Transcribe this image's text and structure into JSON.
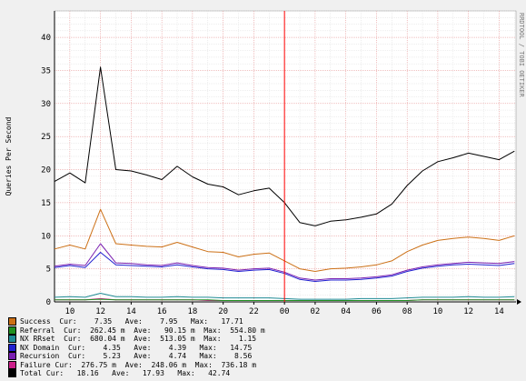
{
  "chart_data": {
    "type": "line",
    "ylabel": "Queries Per Second",
    "watermark": "RRDTOOL / TOBI OETIKER",
    "ylim": [
      0,
      44
    ],
    "yticks": [
      0,
      5,
      10,
      15,
      20,
      25,
      30,
      35,
      40
    ],
    "x_tick_labels": [
      "10",
      "12",
      "14",
      "16",
      "18",
      "20",
      "22",
      "00",
      "02",
      "04",
      "06",
      "08",
      "10",
      "12",
      "14"
    ],
    "x_hours_span": [
      9.0,
      39.1
    ],
    "x_tick_hours": [
      10,
      12,
      14,
      16,
      18,
      20,
      22,
      24,
      26,
      28,
      30,
      32,
      34,
      36,
      38
    ],
    "vrule_hour": 24,
    "hour_step": 1,
    "series": [
      {
        "key": "total",
        "color": "#000000",
        "values": [
          18.2,
          19.5,
          18.0,
          35.5,
          20.0,
          19.8,
          19.2,
          18.5,
          20.5,
          18.9,
          17.8,
          17.4,
          16.2,
          16.8,
          17.2,
          15.0,
          12.0,
          11.5,
          12.2,
          12.4,
          12.8,
          13.3,
          14.8,
          17.6,
          19.8,
          21.2,
          21.8,
          22.5,
          22.0,
          21.5,
          22.8
        ]
      },
      {
        "key": "success",
        "color": "#cc7016",
        "values": [
          8.0,
          8.6,
          8.0,
          14.0,
          8.8,
          8.6,
          8.4,
          8.3,
          9.0,
          8.3,
          7.6,
          7.5,
          6.8,
          7.2,
          7.4,
          6.2,
          5.0,
          4.6,
          5.0,
          5.1,
          5.3,
          5.6,
          6.2,
          7.6,
          8.6,
          9.3,
          9.6,
          9.8,
          9.6,
          9.3,
          10.0
        ]
      },
      {
        "key": "nx_domain",
        "color": "#2020d0",
        "values": [
          5.2,
          5.5,
          5.2,
          7.5,
          5.6,
          5.5,
          5.4,
          5.3,
          5.6,
          5.3,
          5.0,
          4.9,
          4.6,
          4.8,
          4.9,
          4.3,
          3.4,
          3.1,
          3.3,
          3.3,
          3.4,
          3.6,
          3.9,
          4.6,
          5.1,
          5.4,
          5.6,
          5.7,
          5.6,
          5.5,
          5.8
        ]
      },
      {
        "key": "recursion",
        "color": "#7a1fb0",
        "values": [
          5.4,
          5.7,
          5.5,
          8.8,
          5.9,
          5.8,
          5.6,
          5.5,
          5.9,
          5.5,
          5.2,
          5.1,
          4.8,
          5.0,
          5.1,
          4.5,
          3.6,
          3.3,
          3.5,
          3.5,
          3.6,
          3.8,
          4.1,
          4.8,
          5.3,
          5.6,
          5.8,
          6.0,
          5.9,
          5.8,
          6.1
        ]
      },
      {
        "key": "nx_rrset",
        "color": "#1e8a94",
        "values": [
          0.7,
          0.8,
          0.7,
          1.3,
          0.8,
          0.8,
          0.7,
          0.7,
          0.8,
          0.7,
          0.7,
          0.6,
          0.6,
          0.6,
          0.6,
          0.5,
          0.4,
          0.4,
          0.4,
          0.4,
          0.5,
          0.5,
          0.5,
          0.6,
          0.7,
          0.7,
          0.7,
          0.8,
          0.7,
          0.7,
          0.8
        ]
      },
      {
        "key": "failure",
        "color": "#cc1f8a",
        "values": [
          0.3,
          0.3,
          0.3,
          0.5,
          0.3,
          0.3,
          0.3,
          0.3,
          0.3,
          0.3,
          0.2,
          0.2,
          0.2,
          0.2,
          0.2,
          0.2,
          0.2,
          0.2,
          0.2,
          0.2,
          0.2,
          0.2,
          0.2,
          0.2,
          0.3,
          0.3,
          0.3,
          0.3,
          0.3,
          0.3,
          0.3
        ]
      },
      {
        "key": "referral",
        "color": "#209020",
        "values": [
          0.3,
          0.3,
          0.3,
          0.4,
          0.3,
          0.3,
          0.3,
          0.3,
          0.3,
          0.3,
          0.3,
          0.2,
          0.2,
          0.2,
          0.2,
          0.2,
          0.2,
          0.2,
          0.2,
          0.2,
          0.2,
          0.2,
          0.2,
          0.2,
          0.3,
          0.3,
          0.3,
          0.3,
          0.3,
          0.3,
          0.3
        ]
      }
    ],
    "legend": [
      {
        "color": "#cc7016",
        "text": "Success  Cur:    7.35   Ave:    7.95   Max:   17.71"
      },
      {
        "color": "#209020",
        "text": "Referral  Cur:  262.45 m  Ave:   90.15 m  Max:  554.80 m"
      },
      {
        "color": "#1e8a94",
        "text": "NX RRset  Cur:  680.04 m  Ave:  513.05 m  Max:    1.15"
      },
      {
        "color": "#2020d0",
        "text": "NX Domain  Cur:    4.35   Ave:    4.39   Max:   14.75"
      },
      {
        "color": "#7a1fb0",
        "text": "Recursion  Cur:    5.23   Ave:    4.74   Max:    8.56"
      },
      {
        "color": "#cc1f8a",
        "text": "Failure Cur:  276.75 m  Ave:  248.06 m  Max:  736.18 m"
      },
      {
        "color": "#000000",
        "text": "Total Cur:   18.16   Ave:   17.93   Max:   42.74"
      }
    ]
  }
}
